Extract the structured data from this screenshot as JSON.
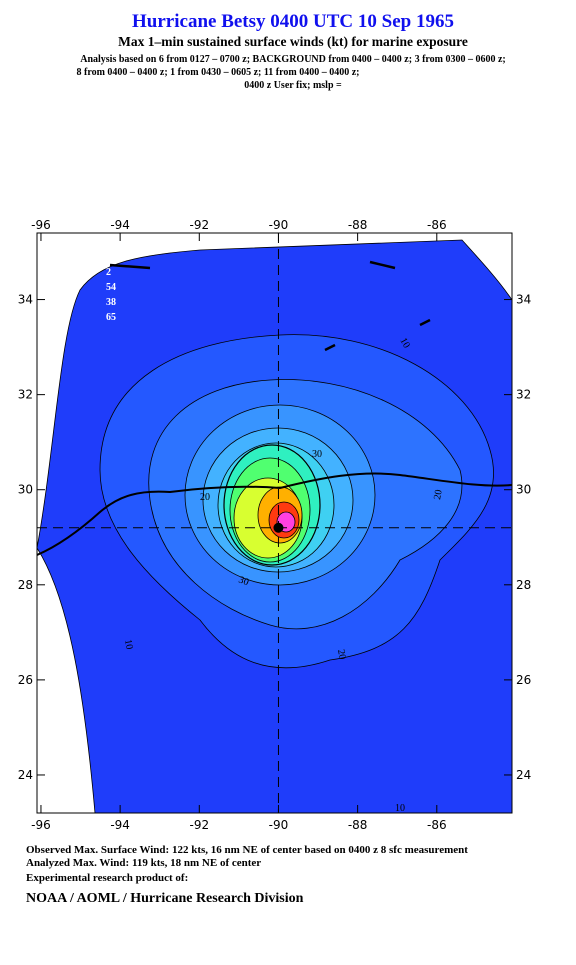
{
  "header": {
    "title": "Hurricane Betsy 0400 UTC 10 Sep 1965",
    "subtitle": "Max 1–min sustained surface winds (kt) for marine exposure",
    "analysis": [
      "Analysis based on  6 from 0127 – 0700 z;  BACKGROUND from 0400 – 0400 z;  3 from 0300 – 0600 z;",
      "8 from 0400 – 0400 z;  1 from 0430 – 0605 z;  11 from 0400 – 0400 z;",
      "0400 z User fix; mslp ="
    ]
  },
  "map": {
    "xlim": [
      -96.1,
      -84.1
    ],
    "ylim": [
      23.2,
      35.4
    ],
    "xticks": [
      -96,
      -94,
      -92,
      -90,
      -88,
      -86
    ],
    "yticks": [
      24,
      26,
      28,
      30,
      32,
      34
    ],
    "center": {
      "lon": -90,
      "lat": 29.2
    },
    "legend": [
      "2",
      "54",
      "38",
      "65"
    ],
    "contour_labels": [
      10,
      30,
      20,
      20,
      30,
      20,
      10,
      10,
      10
    ]
  },
  "footer": {
    "observed": "Observed Max. Surface Wind: 122 kts, 16 nm NE of center based on 0400 z 8 sfc measurement",
    "analyzed": "Analyzed Max. Wind: 119 kts, 18 nm NE of center",
    "product": "Experimental research product of:",
    "org": "NOAA / AOML / Hurricane Research Division"
  }
}
